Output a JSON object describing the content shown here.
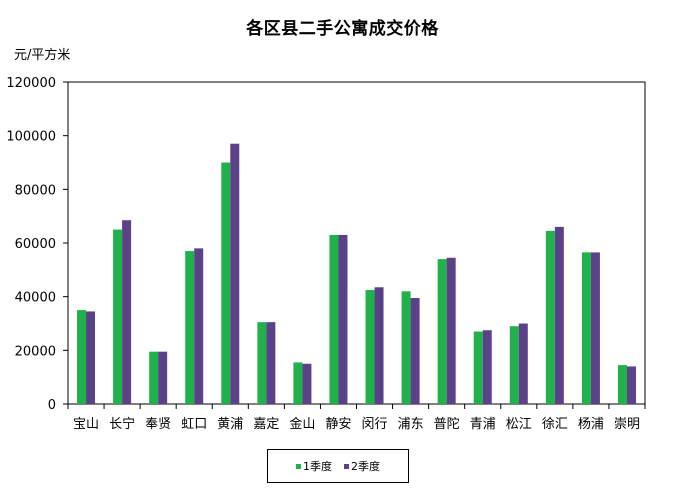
{
  "chart_data": {
    "type": "bar",
    "title": "各区县二手公寓成交价格",
    "ylabel": "元/平方米",
    "xlabel": "",
    "ylim": [
      0,
      120000
    ],
    "yticks": [
      0,
      20000,
      40000,
      60000,
      80000,
      100000,
      120000
    ],
    "grid": false,
    "legend_position": "bottom",
    "categories": [
      "宝山",
      "长宁",
      "奉贤",
      "虹口",
      "黄浦",
      "嘉定",
      "金山",
      "静安",
      "闵行",
      "浦东",
      "普陀",
      "青浦",
      "松江",
      "徐汇",
      "杨浦",
      "崇明"
    ],
    "series": [
      {
        "name": "1季度",
        "color": "#21b14b",
        "values": [
          35000,
          65000,
          19500,
          57000,
          90000,
          30500,
          15500,
          63000,
          42500,
          42000,
          54000,
          27000,
          29000,
          64500,
          56500,
          14500
        ]
      },
      {
        "name": "2季度",
        "color": "#5b4187",
        "values": [
          34500,
          68500,
          19500,
          58000,
          97000,
          30500,
          15000,
          63000,
          43500,
          39500,
          54500,
          27500,
          30000,
          66000,
          56500,
          14000
        ]
      }
    ]
  }
}
